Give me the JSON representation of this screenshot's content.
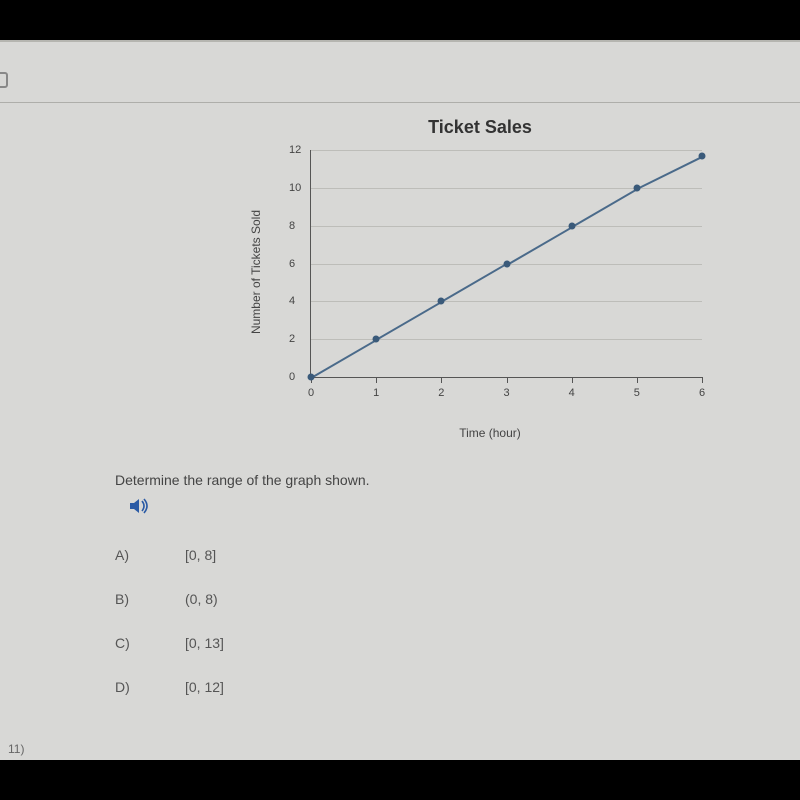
{
  "chart": {
    "title": "Ticket Sales",
    "ylabel": "Number of Tickets Sold",
    "xlabel": "Time (hour)",
    "type": "line",
    "xlim": [
      0,
      6
    ],
    "ylim": [
      0,
      12
    ],
    "xtick_step": 1,
    "ytick_step": 2,
    "xticks": [
      0,
      1,
      2,
      3,
      4,
      5,
      6
    ],
    "yticks": [
      0,
      2,
      4,
      6,
      8,
      10,
      12
    ],
    "x": [
      0,
      1,
      2,
      3,
      4,
      5,
      6
    ],
    "y": [
      0,
      2,
      4,
      6,
      8,
      10,
      11.7
    ],
    "line_color": "#4a6a8a",
    "marker_color": "#3a5a7a",
    "grid_color": "#bdbdb9",
    "axis_color": "#555555",
    "background_color": "#d8d8d6",
    "marker_size": 7,
    "line_width": 1.5,
    "title_fontsize": 18,
    "label_fontsize": 12,
    "tick_fontsize": 11
  },
  "question": {
    "prompt": "Determine the range of the graph shown.",
    "number_label": "11)",
    "choices": [
      {
        "letter": "A)",
        "text": "[0, 8]"
      },
      {
        "letter": "B)",
        "text": "(0, 8)"
      },
      {
        "letter": "C)",
        "text": "[0, 13]"
      },
      {
        "letter": "D)",
        "text": "[0, 12]"
      }
    ]
  },
  "icons": {
    "audio_glyph": "🔊"
  }
}
